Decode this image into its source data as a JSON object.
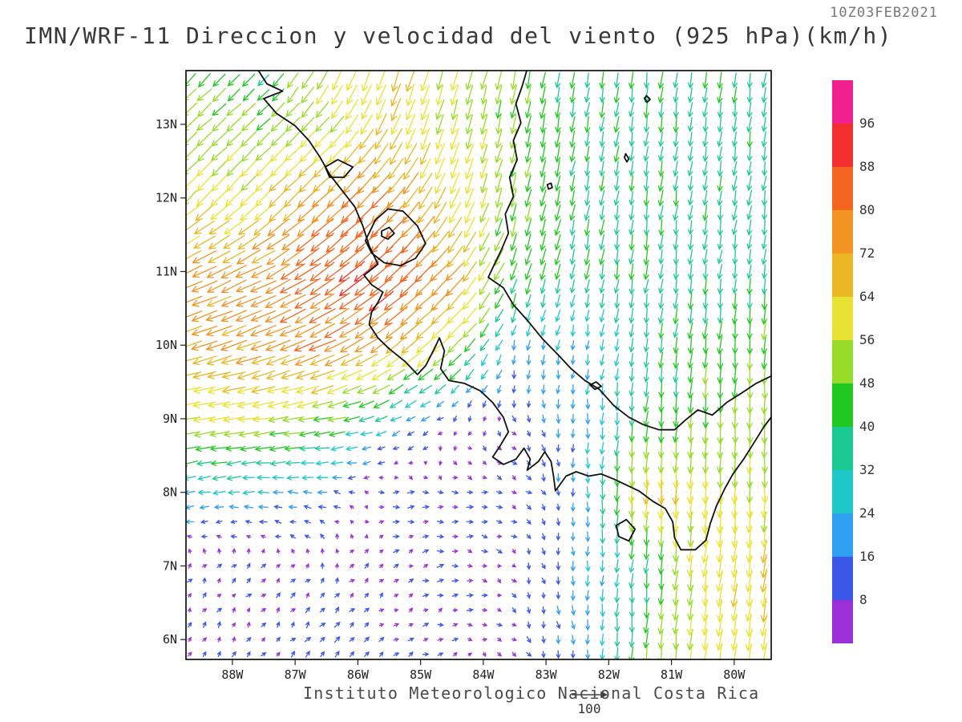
{
  "header": {
    "timestamp": "10Z03FEB2021",
    "title": "IMN/WRF-11 Direccion y velocidad del viento (925 hPa)(km/h)"
  },
  "footer": {
    "credit": "Instituto Meteorologico Nacional Costa Rica"
  },
  "chart_data": {
    "type": "scatter",
    "subtype": "wind_vector_field",
    "title": "IMN/WRF-11 Direccion y velocidad del viento (925 hPa)(km/h)",
    "valid_time": "10Z03FEB2021",
    "units": "km/h",
    "level": "925 hPa",
    "x_axis": {
      "range": [
        -88.74,
        -79.41
      ],
      "ticks": [
        {
          "label": "88W",
          "value": -88
        },
        {
          "label": "87W",
          "value": -87
        },
        {
          "label": "86W",
          "value": -86
        },
        {
          "label": "85W",
          "value": -85
        },
        {
          "label": "84W",
          "value": -84
        },
        {
          "label": "83W",
          "value": -83
        },
        {
          "label": "82W",
          "value": -82
        },
        {
          "label": "81W",
          "value": -81
        },
        {
          "label": "80W",
          "value": -80
        }
      ]
    },
    "y_axis": {
      "range": [
        5.73,
        13.73
      ],
      "ticks": [
        {
          "label": "13N",
          "value": 13
        },
        {
          "label": "12N",
          "value": 12
        },
        {
          "label": "11N",
          "value": 11
        },
        {
          "label": "10N",
          "value": 10
        },
        {
          "label": "9N",
          "value": 9
        },
        {
          "label": "8N",
          "value": 8
        },
        {
          "label": "7N",
          "value": 7
        },
        {
          "label": "6N",
          "value": 6
        }
      ]
    },
    "colorbar": {
      "levels": [
        8,
        16,
        24,
        32,
        40,
        48,
        56,
        64,
        72,
        80,
        88,
        96
      ],
      "colors_low_to_high": [
        "#9b30d9",
        "#3a57e8",
        "#2f9ff2",
        "#1ec8c8",
        "#1bc993",
        "#22c822",
        "#97dc28",
        "#e8e332",
        "#e9b824",
        "#f29422",
        "#f4661f",
        "#f32e2e",
        "#f0218f"
      ]
    },
    "reference_vector": {
      "speed": 100,
      "label": "100"
    },
    "wind_grid": {
      "lats": [
        5.75,
        7,
        8,
        9,
        10,
        11,
        12,
        13,
        13.7
      ],
      "lons": [
        -88.7,
        -87.5,
        -86.5,
        -85.5,
        -84.5,
        -83.5,
        -82.5,
        -81.5,
        -80.5,
        -79.5
      ],
      "u": [
        [
          2,
          5,
          10,
          6,
          7,
          5,
          2,
          -3,
          -8,
          -10
        ],
        [
          5,
          6,
          3,
          6,
          9,
          5,
          0,
          -3,
          -8,
          -10
        ],
        [
          -26,
          -25,
          -18,
          8,
          10,
          7,
          2,
          -3,
          -5,
          0
        ],
        [
          -58,
          -55,
          -48,
          -27,
          -8,
          5,
          0,
          -5,
          -3,
          0
        ],
        [
          -68,
          -70,
          -72,
          -60,
          -40,
          -5,
          -3,
          -5,
          -5,
          -3
        ],
        [
          -68,
          -70,
          -70,
          -68,
          -50,
          -15,
          -8,
          -5,
          -5,
          -5
        ],
        [
          -40,
          -45,
          -55,
          -55,
          -25,
          -12,
          -8,
          -5,
          -5,
          -5
        ],
        [
          -38,
          -34,
          -38,
          -25,
          -15,
          -10,
          -7,
          -5,
          -5,
          -5
        ],
        [
          -34,
          -28,
          -25,
          -20,
          -15,
          -10,
          -8,
          -5,
          -5,
          -5
        ]
      ],
      "v": [
        [
          8,
          6,
          10,
          4,
          2,
          -5,
          -18,
          -45,
          -58,
          -60
        ],
        [
          5,
          5,
          6,
          4,
          2,
          -5,
          -20,
          -35,
          -60,
          -62
        ],
        [
          -5,
          0,
          3,
          0,
          0,
          -3,
          -18,
          -65,
          -60,
          -55
        ],
        [
          -10,
          -8,
          -10,
          -10,
          -6,
          -8,
          -20,
          -40,
          -48,
          -52
        ],
        [
          -20,
          -25,
          -32,
          -45,
          -40,
          -22,
          -20,
          -35,
          -42,
          -48
        ],
        [
          -32,
          -35,
          -52,
          -60,
          -55,
          -45,
          -38,
          -38,
          -36,
          -36
        ],
        [
          -40,
          -45,
          -52,
          -58,
          -58,
          -47,
          -39,
          -38,
          -38,
          -36
        ],
        [
          -35,
          -34,
          -40,
          -58,
          -54,
          -47,
          -39,
          -38,
          -38,
          -38
        ],
        [
          -34,
          -28,
          -55,
          -60,
          -54,
          -47,
          -39,
          -40,
          -40,
          -38
        ]
      ]
    },
    "coastlines": [
      {
        "name": "pacific-coast",
        "closed": false,
        "points": [
          [
            -87.6,
            13.75
          ],
          [
            -87.45,
            13.55
          ],
          [
            -87.2,
            13.45
          ],
          [
            -87.5,
            13.35
          ],
          [
            -87.3,
            13.15
          ],
          [
            -87.0,
            12.98
          ],
          [
            -86.78,
            12.78
          ],
          [
            -86.6,
            12.55
          ],
          [
            -86.45,
            12.32
          ],
          [
            -86.25,
            12.1
          ],
          [
            -86.05,
            11.88
          ],
          [
            -85.92,
            11.62
          ],
          [
            -85.82,
            11.35
          ],
          [
            -85.68,
            11.1
          ],
          [
            -85.9,
            10.95
          ],
          [
            -85.78,
            10.82
          ],
          [
            -85.6,
            10.72
          ],
          [
            -85.68,
            10.58
          ],
          [
            -85.78,
            10.45
          ],
          [
            -85.82,
            10.28
          ],
          [
            -85.68,
            10.1
          ],
          [
            -85.5,
            9.95
          ],
          [
            -85.25,
            9.78
          ],
          [
            -85.05,
            9.6
          ],
          [
            -84.92,
            9.72
          ],
          [
            -84.78,
            9.95
          ],
          [
            -84.7,
            10.1
          ],
          [
            -84.62,
            9.92
          ],
          [
            -84.68,
            9.68
          ],
          [
            -84.55,
            9.52
          ],
          [
            -84.3,
            9.48
          ],
          [
            -84.05,
            9.38
          ],
          [
            -83.85,
            9.22
          ],
          [
            -83.68,
            9.02
          ],
          [
            -83.6,
            8.82
          ],
          [
            -83.72,
            8.65
          ],
          [
            -83.85,
            8.48
          ],
          [
            -83.68,
            8.38
          ],
          [
            -83.48,
            8.45
          ],
          [
            -83.35,
            8.6
          ],
          [
            -83.25,
            8.45
          ],
          [
            -83.3,
            8.3
          ],
          [
            -83.12,
            8.42
          ],
          [
            -83.02,
            8.55
          ],
          [
            -82.92,
            8.42
          ],
          [
            -82.88,
            8.22
          ],
          [
            -82.85,
            8.02
          ],
          [
            -82.68,
            8.22
          ],
          [
            -82.52,
            8.28
          ],
          [
            -82.32,
            8.22
          ],
          [
            -82.12,
            8.25
          ],
          [
            -81.92,
            8.18
          ],
          [
            -81.72,
            8.1
          ],
          [
            -81.52,
            8.02
          ],
          [
            -81.3,
            7.88
          ],
          [
            -81.1,
            7.78
          ],
          [
            -80.98,
            7.6
          ],
          [
            -80.95,
            7.38
          ],
          [
            -80.85,
            7.22
          ],
          [
            -80.62,
            7.22
          ],
          [
            -80.45,
            7.35
          ],
          [
            -80.38,
            7.58
          ],
          [
            -80.28,
            7.82
          ],
          [
            -80.15,
            8.05
          ],
          [
            -80.02,
            8.25
          ],
          [
            -79.85,
            8.45
          ],
          [
            -79.68,
            8.68
          ],
          [
            -79.52,
            8.9
          ],
          [
            -79.41,
            9.02
          ]
        ]
      },
      {
        "name": "caribbean-coast",
        "closed": false,
        "points": [
          [
            -83.3,
            13.75
          ],
          [
            -83.38,
            13.52
          ],
          [
            -83.48,
            13.28
          ],
          [
            -83.4,
            13.02
          ],
          [
            -83.52,
            12.78
          ],
          [
            -83.46,
            12.52
          ],
          [
            -83.58,
            12.28
          ],
          [
            -83.52,
            12.02
          ],
          [
            -83.65,
            11.78
          ],
          [
            -83.6,
            11.52
          ],
          [
            -83.72,
            11.28
          ],
          [
            -83.85,
            11.05
          ],
          [
            -83.92,
            10.92
          ],
          [
            -83.68,
            10.78
          ],
          [
            -83.52,
            10.55
          ],
          [
            -83.28,
            10.32
          ],
          [
            -83.05,
            10.08
          ],
          [
            -82.82,
            9.88
          ],
          [
            -82.6,
            9.68
          ],
          [
            -82.38,
            9.52
          ],
          [
            -82.15,
            9.4
          ],
          [
            -81.92,
            9.18
          ],
          [
            -81.68,
            9.02
          ],
          [
            -81.45,
            8.92
          ],
          [
            -81.2,
            8.85
          ],
          [
            -80.95,
            8.85
          ],
          [
            -80.78,
            8.98
          ],
          [
            -80.58,
            9.12
          ],
          [
            -80.35,
            9.05
          ],
          [
            -80.12,
            9.22
          ],
          [
            -79.88,
            9.35
          ],
          [
            -79.65,
            9.48
          ],
          [
            -79.41,
            9.58
          ]
        ]
      },
      {
        "name": "lake-nicaragua",
        "closed": true,
        "points": [
          [
            -85.88,
            11.42
          ],
          [
            -85.72,
            11.7
          ],
          [
            -85.52,
            11.85
          ],
          [
            -85.28,
            11.82
          ],
          [
            -85.05,
            11.62
          ],
          [
            -84.92,
            11.38
          ],
          [
            -85.08,
            11.18
          ],
          [
            -85.32,
            11.08
          ],
          [
            -85.58,
            11.12
          ],
          [
            -85.78,
            11.25
          ]
        ]
      },
      {
        "name": "lake-managua",
        "closed": true,
        "points": [
          [
            -86.52,
            12.42
          ],
          [
            -86.32,
            12.52
          ],
          [
            -86.08,
            12.42
          ],
          [
            -86.22,
            12.28
          ],
          [
            -86.45,
            12.28
          ]
        ]
      },
      {
        "name": "isla-ometepe",
        "closed": true,
        "points": [
          [
            -85.62,
            11.55
          ],
          [
            -85.5,
            11.6
          ],
          [
            -85.42,
            11.52
          ],
          [
            -85.52,
            11.44
          ],
          [
            -85.62,
            11.48
          ]
        ]
      },
      {
        "name": "isla-coiba",
        "closed": true,
        "points": [
          [
            -81.88,
            7.55
          ],
          [
            -81.72,
            7.63
          ],
          [
            -81.58,
            7.5
          ],
          [
            -81.68,
            7.34
          ],
          [
            -81.84,
            7.4
          ]
        ]
      },
      {
        "name": "isla-san-andres",
        "closed": true,
        "points": [
          [
            -81.73,
            12.6
          ],
          [
            -81.68,
            12.53
          ],
          [
            -81.71,
            12.49
          ],
          [
            -81.75,
            12.55
          ]
        ]
      },
      {
        "name": "isla-providencia",
        "closed": true,
        "points": [
          [
            -81.4,
            13.39
          ],
          [
            -81.34,
            13.34
          ],
          [
            -81.39,
            13.3
          ],
          [
            -81.43,
            13.35
          ]
        ]
      },
      {
        "name": "bocas-islands",
        "closed": true,
        "points": [
          [
            -82.3,
            9.46
          ],
          [
            -82.2,
            9.5
          ],
          [
            -82.12,
            9.44
          ],
          [
            -82.22,
            9.4
          ]
        ]
      },
      {
        "name": "corn-island",
        "closed": true,
        "points": [
          [
            -82.98,
            12.18
          ],
          [
            -82.92,
            12.2
          ],
          [
            -82.9,
            12.14
          ],
          [
            -82.96,
            12.12
          ]
        ]
      }
    ]
  }
}
